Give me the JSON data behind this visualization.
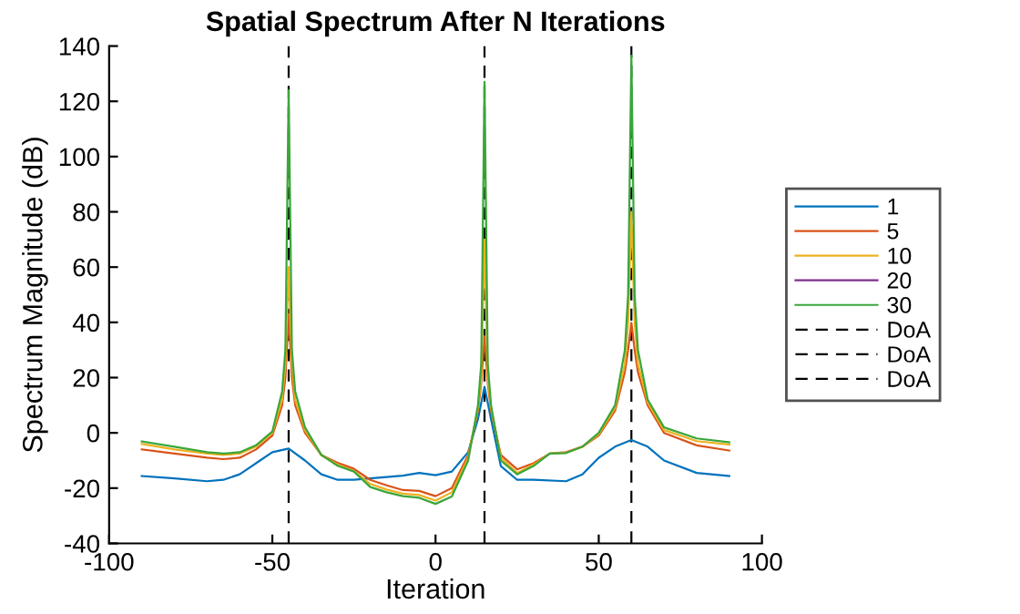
{
  "chart_data": {
    "type": "line",
    "title": "Spatial Spectrum After N Iterations",
    "xlabel": "Iteration",
    "ylabel": "Spectrum Magnitude (dB)",
    "xlim": [
      -100,
      100
    ],
    "xticks": [
      -100,
      -50,
      0,
      50,
      100
    ],
    "ylim": [
      -40,
      140
    ],
    "yticks": [
      -40,
      -20,
      0,
      20,
      40,
      60,
      80,
      100,
      120,
      140
    ],
    "grid": false,
    "legend": "right",
    "line_style": "solid",
    "marker": "none",
    "series": [
      {
        "name": "1",
        "color": "#0072bd",
        "x": [
          -90,
          -80,
          -70,
          -65,
          -60,
          -55,
          -50,
          -45,
          -40,
          -35,
          -30,
          -25,
          -20,
          -15,
          -10,
          -5,
          0,
          5,
          10,
          13,
          15,
          17,
          20,
          25,
          30,
          40,
          45,
          50,
          55,
          60,
          65,
          70,
          80,
          90
        ],
        "values": [
          -15.6,
          -16.5,
          -17.5,
          -17,
          -15,
          -11,
          -7,
          -5.7,
          -10,
          -15,
          -17,
          -17,
          -16.5,
          -16,
          -15.5,
          -14.5,
          -15.3,
          -14,
          -7,
          5,
          16.7,
          5,
          -12,
          -17,
          -17,
          -17.5,
          -15,
          -9,
          -5,
          -2.6,
          -5,
          -10,
          -14.5,
          -15.6
        ]
      },
      {
        "name": "5",
        "color": "#d95319",
        "x": [
          -90,
          -80,
          -70,
          -65,
          -60,
          -55,
          -50,
          -47,
          -46,
          -45,
          -44,
          -43,
          -40,
          -35,
          -30,
          -25,
          -20,
          -15,
          -10,
          -5,
          0,
          5,
          10,
          13,
          14,
          15,
          16,
          17,
          20,
          25,
          30,
          35,
          40,
          45,
          50,
          55,
          58,
          59,
          60,
          61,
          62,
          65,
          70,
          80,
          90
        ],
        "values": [
          -6,
          -7.5,
          -9,
          -9.5,
          -9,
          -6,
          -1,
          10,
          20,
          43,
          20,
          10,
          0,
          -8,
          -10.8,
          -13,
          -17,
          -19,
          -20.7,
          -21,
          -22.9,
          -20,
          -8,
          8,
          18,
          35,
          18,
          8,
          -8,
          -13.2,
          -11,
          -7.5,
          -7,
          -5,
          -1,
          8,
          22,
          30,
          39.8,
          30,
          22,
          10,
          0,
          -4.5,
          -6.4
        ]
      },
      {
        "name": "10",
        "color": "#edb120",
        "x": [
          -90,
          -80,
          -70,
          -65,
          -60,
          -55,
          -50,
          -47,
          -46,
          -45,
          -44,
          -43,
          -40,
          -35,
          -30,
          -25,
          -20,
          -15,
          -10,
          -5,
          0,
          5,
          10,
          13,
          14,
          15,
          16,
          17,
          20,
          25,
          30,
          35,
          40,
          45,
          50,
          55,
          58,
          59,
          60,
          61,
          62,
          65,
          70,
          80,
          90
        ],
        "values": [
          -4,
          -6,
          -7.5,
          -8,
          -7.5,
          -5,
          0,
          12,
          25,
          60,
          25,
          12,
          1,
          -8,
          -11.5,
          -13.8,
          -18.5,
          -20.5,
          -22,
          -22.5,
          -24.5,
          -21.5,
          -9,
          9,
          20,
          70,
          20,
          9,
          -9,
          -14.5,
          -11.5,
          -7.5,
          -7.2,
          -5,
          -0.5,
          9,
          25,
          40,
          80,
          40,
          25,
          11,
          1,
          -3,
          -4.2
        ]
      },
      {
        "name": "20",
        "color": "#7e2f8e"
      },
      {
        "name": "30",
        "color": "#3aa63a",
        "x": [
          -90,
          -80,
          -70,
          -65,
          -60,
          -55,
          -50,
          -47,
          -46,
          -45,
          -44,
          -43,
          -40,
          -35,
          -30,
          -25,
          -20,
          -15,
          -10,
          -5,
          0,
          5,
          10,
          13,
          14,
          15,
          16,
          17,
          20,
          25,
          30,
          35,
          40,
          45,
          50,
          55,
          58,
          59,
          60,
          61,
          62,
          65,
          70,
          80,
          90
        ],
        "values": [
          -3.1,
          -5,
          -7,
          -7.5,
          -7,
          -4.5,
          0.5,
          15,
          30,
          124,
          30,
          15,
          2,
          -8,
          -11.9,
          -14,
          -19.6,
          -21.5,
          -22.9,
          -23.5,
          -25.7,
          -23,
          -10,
          10,
          25,
          127,
          25,
          10,
          -10,
          -15,
          -12,
          -7.5,
          -7.3,
          -5,
          0,
          10,
          30,
          50,
          136.5,
          50,
          30,
          12,
          2,
          -2,
          -3.4
        ]
      },
      {
        "name": "DoA",
        "color": "#000000",
        "line_style": "dashed",
        "x": [
          -45,
          -45
        ],
        "values": [
          -40,
          140
        ]
      },
      {
        "name": "DoA",
        "color": "#000000",
        "line_style": "dashed",
        "x": [
          15,
          15
        ],
        "values": [
          -40,
          140
        ]
      },
      {
        "name": "DoA",
        "color": "#000000",
        "line_style": "dashed",
        "x": [
          60,
          60
        ],
        "values": [
          -40,
          140
        ]
      }
    ]
  }
}
